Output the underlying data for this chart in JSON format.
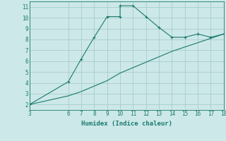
{
  "title": "",
  "xlabel": "Humidex (Indice chaleur)",
  "bg_color": "#cce8e8",
  "line_color": "#1a7a6e",
  "grid_color": "#aacccc",
  "x_curve": [
    3,
    6,
    7,
    8,
    9,
    10,
    10,
    11,
    12,
    13,
    14,
    15,
    16,
    16,
    17,
    18
  ],
  "y_curve": [
    2,
    4.1,
    6.2,
    8.2,
    10.1,
    10.1,
    11.1,
    11.1,
    10.1,
    9.1,
    8.2,
    8.2,
    8.5,
    8.5,
    8.2,
    8.5
  ],
  "x_line": [
    3,
    6,
    7,
    8,
    9,
    10,
    11,
    12,
    13,
    14,
    15,
    16,
    17,
    18
  ],
  "y_line": [
    2,
    2.8,
    3.2,
    3.7,
    4.2,
    4.9,
    5.4,
    5.9,
    6.4,
    6.9,
    7.3,
    7.7,
    8.1,
    8.5
  ],
  "xlim": [
    3,
    18
  ],
  "ylim": [
    1.5,
    11.5
  ],
  "xticks": [
    3,
    6,
    7,
    8,
    9,
    10,
    11,
    12,
    13,
    14,
    15,
    16,
    17,
    18
  ],
  "yticks": [
    2,
    3,
    4,
    5,
    6,
    7,
    8,
    9,
    10,
    11
  ],
  "ytick_labels": [
    "2",
    "3",
    "4",
    "5",
    "6",
    "7",
    "8",
    "9",
    "10",
    "11"
  ],
  "xtick_labels": [
    "3",
    "6",
    "7",
    "8",
    "9",
    "10",
    "11",
    "12",
    "13",
    "14",
    "15",
    "16",
    "17",
    "18"
  ]
}
